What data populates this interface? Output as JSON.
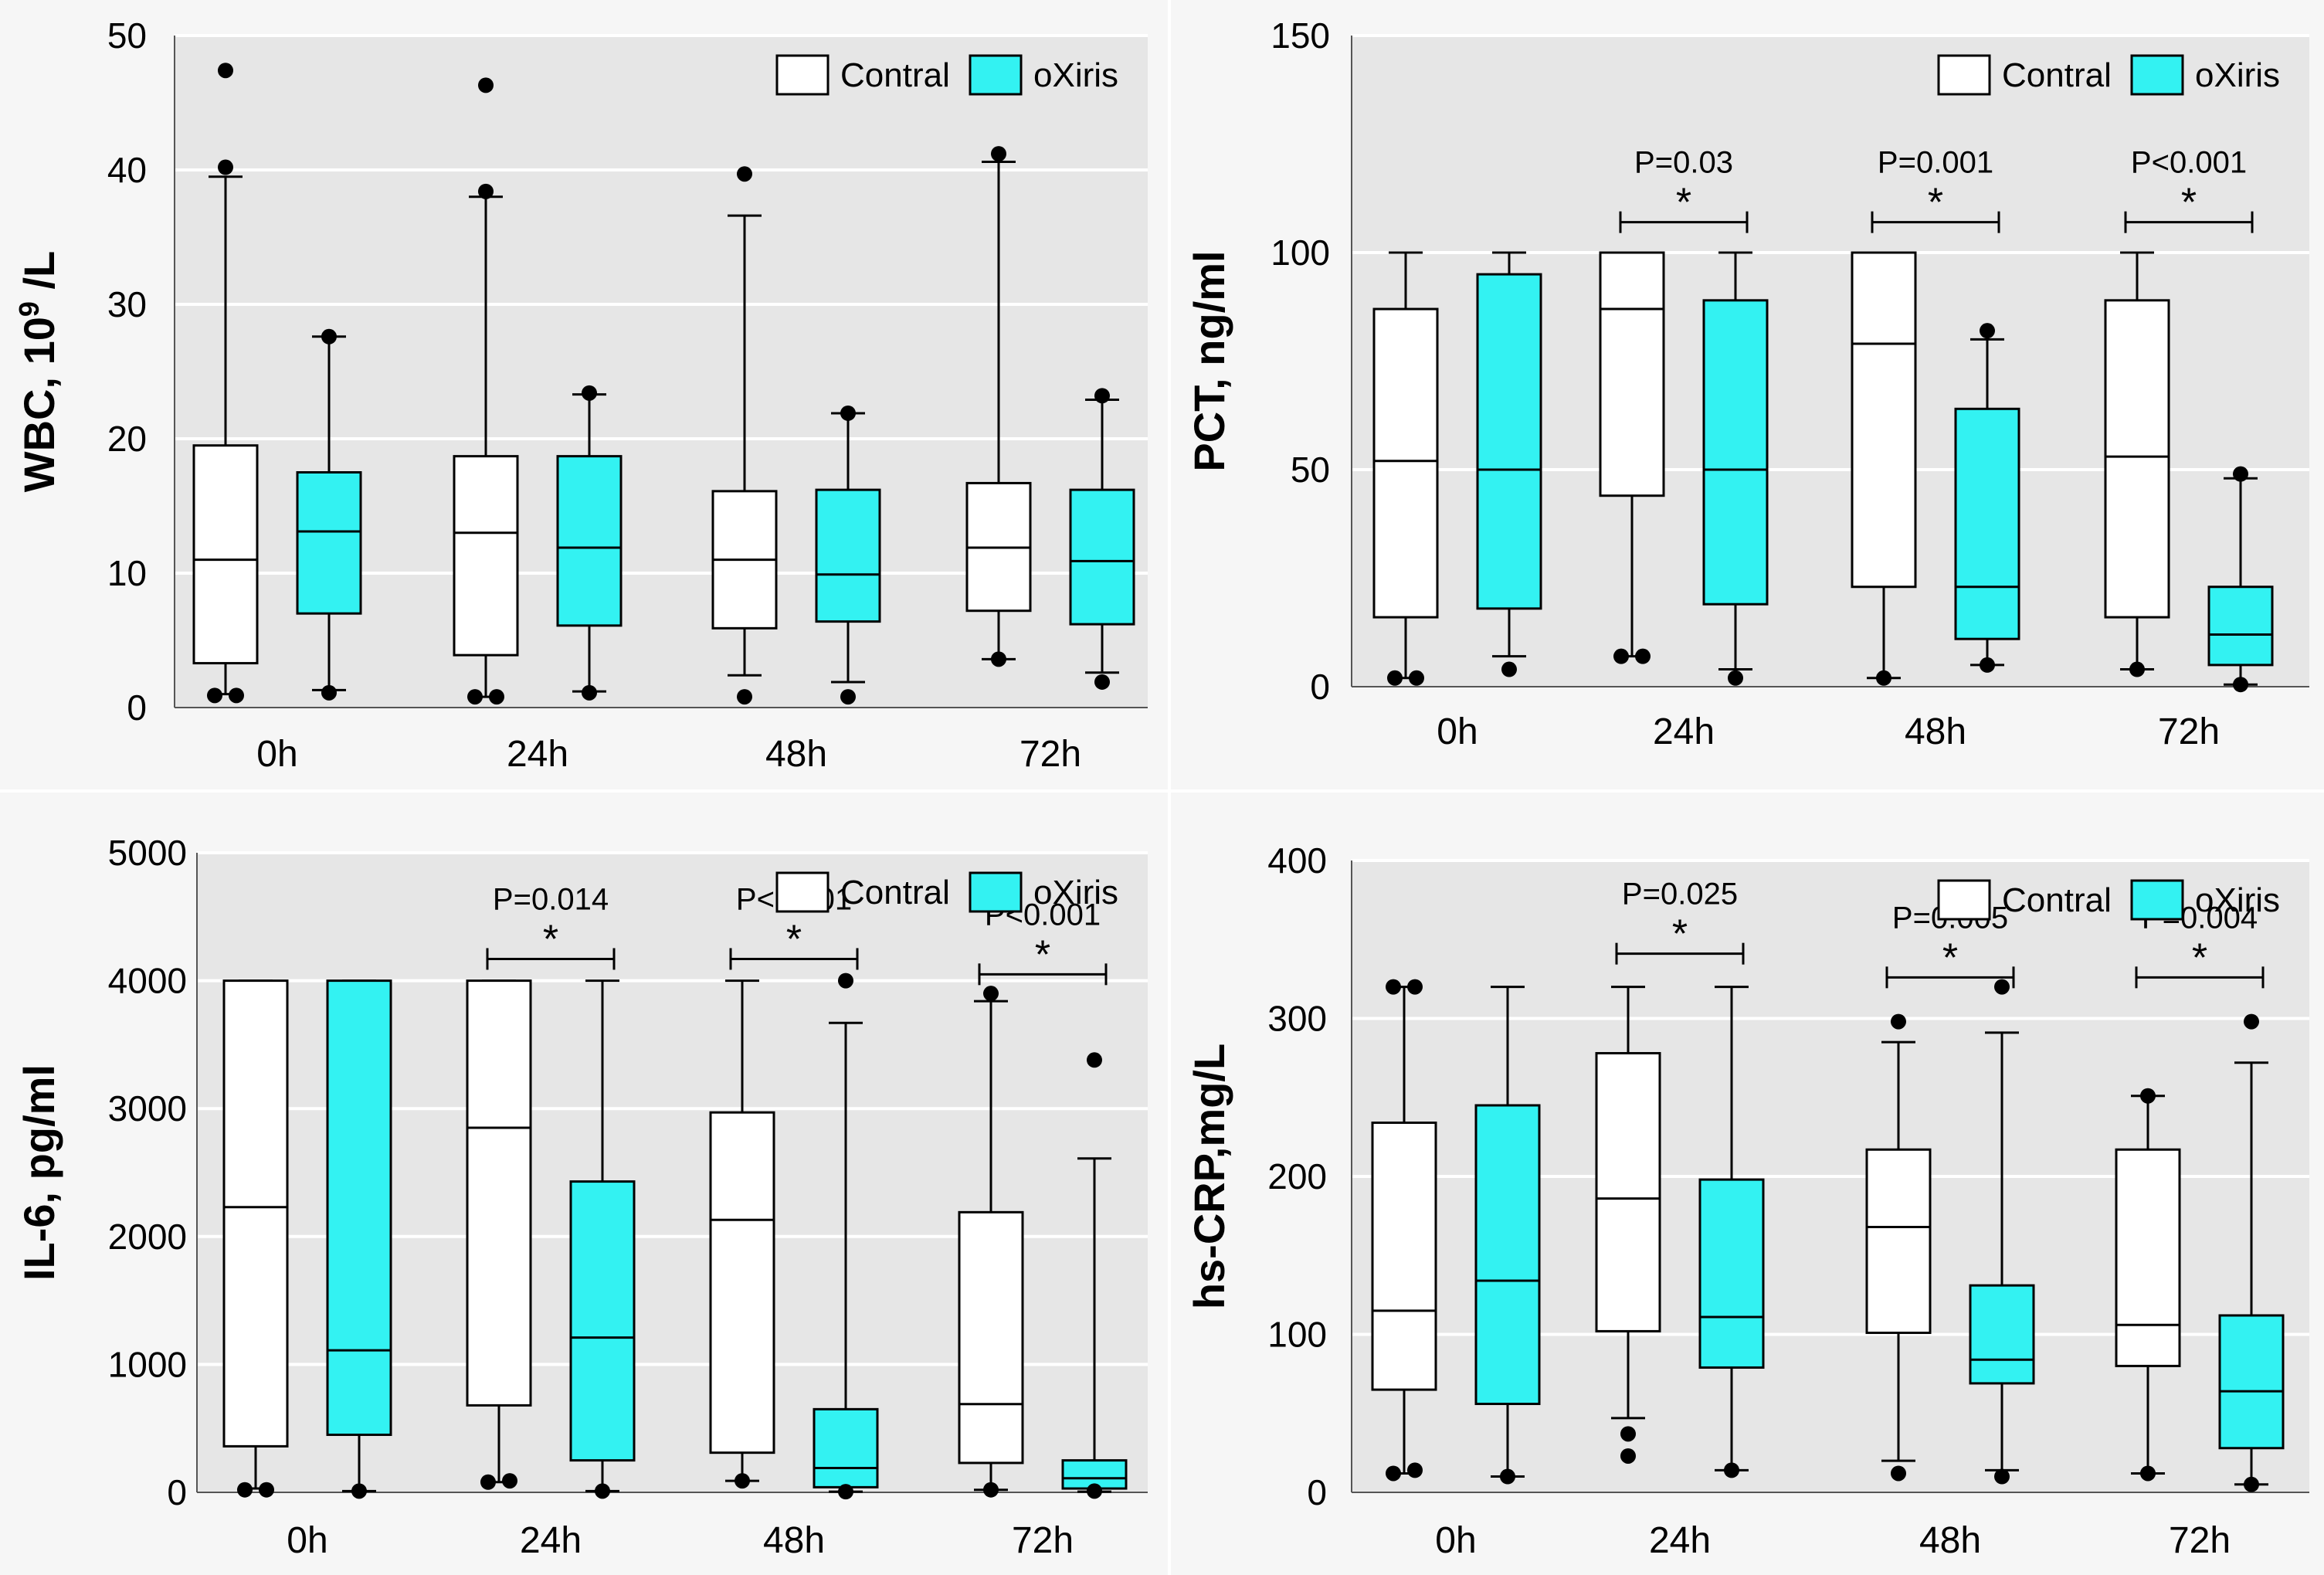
{
  "colors": {
    "control_fill": "#ffffff",
    "oxiris_fill": "#33f2f2",
    "plot_bg": "#e6e6e6",
    "stroke": "#000000"
  },
  "chart_data": [
    {
      "type": "box",
      "ylabel_main": "WBC, 10",
      "ylabel_sup": "9",
      "ylabel_tail": " /L",
      "ylim": [
        0,
        50
      ],
      "yticks": [
        0,
        10,
        20,
        30,
        40,
        50
      ],
      "categories": [
        "0h",
        "24h",
        "48h",
        "72h"
      ],
      "legend": [
        "Contral",
        "oXiris"
      ],
      "legend_position": "top-right",
      "grid": true,
      "series": [
        {
          "name": "Contral",
          "boxes": [
            {
              "q1": 3.3,
              "median": 11.0,
              "q3": 19.5,
              "wlow": 1.0,
              "whigh": 39.5,
              "outliers": [
                47.4,
                40.2,
                0.9,
                0.9
              ]
            },
            {
              "q1": 3.9,
              "median": 13.0,
              "q3": 18.7,
              "wlow": 0.8,
              "whigh": 38.0,
              "outliers": [
                46.3,
                38.4,
                0.8,
                0.8
              ]
            },
            {
              "q1": 5.9,
              "median": 11.0,
              "q3": 16.1,
              "wlow": 2.4,
              "whigh": 36.6,
              "outliers": [
                39.7,
                0.8
              ]
            },
            {
              "q1": 7.2,
              "median": 11.9,
              "q3": 16.7,
              "wlow": 3.6,
              "whigh": 40.6,
              "outliers": [
                41.2,
                3.6
              ]
            }
          ]
        },
        {
          "name": "oXiris",
          "boxes": [
            {
              "q1": 7.0,
              "median": 13.1,
              "q3": 17.5,
              "wlow": 1.3,
              "whigh": 27.6,
              "outliers": [
                27.6,
                1.1
              ]
            },
            {
              "q1": 6.1,
              "median": 11.9,
              "q3": 18.7,
              "wlow": 1.2,
              "whigh": 23.3,
              "outliers": [
                23.4,
                1.1
              ]
            },
            {
              "q1": 6.4,
              "median": 9.9,
              "q3": 16.2,
              "wlow": 1.9,
              "whigh": 21.9,
              "outliers": [
                21.9,
                0.8
              ]
            },
            {
              "q1": 6.2,
              "median": 10.9,
              "q3": 16.2,
              "wlow": 2.6,
              "whigh": 22.9,
              "outliers": [
                23.2,
                1.9
              ]
            }
          ]
        }
      ],
      "annotations": []
    },
    {
      "type": "box",
      "ylabel_main": "PCT, ng/ml",
      "ylabel_sup": "",
      "ylabel_tail": "",
      "ylim": [
        0,
        150
      ],
      "yticks": [
        0,
        50,
        100,
        150
      ],
      "categories": [
        "0h",
        "24h",
        "48h",
        "72h"
      ],
      "legend": [
        "Contral",
        "oXiris"
      ],
      "legend_position": "top-right",
      "grid": true,
      "series": [
        {
          "name": "Contral",
          "boxes": [
            {
              "q1": 16,
              "median": 52,
              "q3": 87,
              "wlow": 2,
              "whigh": 100,
              "outliers": [
                2,
                2
              ]
            },
            {
              "q1": 44,
              "median": 87,
              "q3": 100,
              "wlow": 7,
              "whigh": 100,
              "outliers": [
                7,
                7
              ]
            },
            {
              "q1": 23,
              "median": 79,
              "q3": 100,
              "wlow": 2,
              "whigh": 100,
              "outliers": [
                2
              ]
            },
            {
              "q1": 16,
              "median": 53,
              "q3": 89,
              "wlow": 4,
              "whigh": 100,
              "outliers": [
                4
              ]
            }
          ]
        },
        {
          "name": "oXiris",
          "boxes": [
            {
              "q1": 18,
              "median": 50,
              "q3": 95,
              "wlow": 7,
              "whigh": 100,
              "outliers": [
                4
              ]
            },
            {
              "q1": 19,
              "median": 50,
              "q3": 89,
              "wlow": 4,
              "whigh": 100,
              "outliers": [
                2
              ]
            },
            {
              "q1": 11,
              "median": 23,
              "q3": 64,
              "wlow": 5,
              "whigh": 80,
              "outliers": [
                82,
                5
              ]
            },
            {
              "q1": 5,
              "median": 12,
              "q3": 23,
              "wlow": 0.5,
              "whigh": 48,
              "outliers": [
                49,
                0.5
              ]
            }
          ]
        }
      ],
      "annotations": [
        {
          "category": 1,
          "pvalue": "P=0.03",
          "star": "*",
          "bracket_y": 107
        },
        {
          "category": 2,
          "pvalue": "P=0.001",
          "star": "*",
          "bracket_y": 107
        },
        {
          "category": 3,
          "pvalue": "P<0.001",
          "star": "*",
          "bracket_y": 107
        }
      ]
    },
    {
      "type": "box",
      "ylabel_main": "IL-6, pg/ml",
      "ylabel_sup": "",
      "ylabel_tail": "",
      "ylim": [
        0,
        5000
      ],
      "yticks": [
        0,
        1000,
        2000,
        3000,
        4000,
        5000
      ],
      "categories": [
        "0h",
        "24h",
        "48h",
        "72h"
      ],
      "legend": [
        "Contral",
        "oXiris"
      ],
      "legend_position": "top-right",
      "grid": true,
      "series": [
        {
          "name": "Contral",
          "boxes": [
            {
              "q1": 360,
              "median": 2230,
              "q3": 4000,
              "wlow": 30,
              "whigh": 4000,
              "outliers": [
                20,
                20
              ]
            },
            {
              "q1": 680,
              "median": 2850,
              "q3": 4000,
              "wlow": 80,
              "whigh": 4000,
              "outliers": [
                80,
                90
              ]
            },
            {
              "q1": 310,
              "median": 2130,
              "q3": 2970,
              "wlow": 90,
              "whigh": 4000,
              "outliers": [
                90
              ]
            },
            {
              "q1": 230,
              "median": 690,
              "q3": 2190,
              "wlow": 20,
              "whigh": 3840,
              "outliers": [
                3900,
                20
              ]
            }
          ]
        },
        {
          "name": "oXiris",
          "boxes": [
            {
              "q1": 450,
              "median": 1110,
              "q3": 4000,
              "wlow": 10,
              "whigh": 4000,
              "outliers": [
                10
              ]
            },
            {
              "q1": 250,
              "median": 1210,
              "q3": 2430,
              "wlow": 10,
              "whigh": 4000,
              "outliers": [
                10
              ]
            },
            {
              "q1": 40,
              "median": 190,
              "q3": 650,
              "wlow": 5,
              "whigh": 3670,
              "outliers": [
                4000,
                5
              ]
            },
            {
              "q1": 30,
              "median": 110,
              "q3": 250,
              "wlow": 5,
              "whigh": 2610,
              "outliers": [
                3380,
                10
              ]
            }
          ]
        }
      ],
      "annotations": [
        {
          "category": 1,
          "pvalue": "P=0.014",
          "star": "*",
          "bracket_y": 4170
        },
        {
          "category": 2,
          "pvalue": "P<0.001",
          "star": "*",
          "bracket_y": 4170
        },
        {
          "category": 3,
          "pvalue": "P<0.001",
          "star": "*",
          "bracket_y": 4050
        }
      ]
    },
    {
      "type": "box",
      "ylabel_main": "hs-CRP,mg/L",
      "ylabel_sup": "",
      "ylabel_tail": "",
      "ylim": [
        0,
        400
      ],
      "yticks": [
        0,
        100,
        200,
        300,
        400
      ],
      "categories": [
        "0h",
        "24h",
        "48h",
        "72h"
      ],
      "legend": [
        "Contral",
        "oXiris"
      ],
      "legend_position": "top-right",
      "grid": true,
      "series": [
        {
          "name": "Contral",
          "boxes": [
            {
              "q1": 65,
              "median": 115,
              "q3": 234,
              "wlow": 12,
              "whigh": 320,
              "outliers": [
                320,
                320,
                12,
                14
              ]
            },
            {
              "q1": 102,
              "median": 186,
              "q3": 278,
              "wlow": 47,
              "whigh": 320,
              "outliers": [
                37,
                23
              ]
            },
            {
              "q1": 101,
              "median": 168,
              "q3": 217,
              "wlow": 20,
              "whigh": 285,
              "outliers": [
                298,
                12
              ]
            },
            {
              "q1": 80,
              "median": 106,
              "q3": 217,
              "wlow": 12,
              "whigh": 251,
              "outliers": [
                251,
                12
              ]
            }
          ]
        },
        {
          "name": "oXiris",
          "boxes": [
            {
              "q1": 56,
              "median": 134,
              "q3": 245,
              "wlow": 10,
              "whigh": 320,
              "outliers": [
                10
              ]
            },
            {
              "q1": 79,
              "median": 111,
              "q3": 198,
              "wlow": 14,
              "whigh": 320,
              "outliers": [
                14
              ]
            },
            {
              "q1": 69,
              "median": 84,
              "q3": 131,
              "wlow": 14,
              "whigh": 291,
              "outliers": [
                320,
                10
              ]
            },
            {
              "q1": 28,
              "median": 64,
              "q3": 112,
              "wlow": 5,
              "whigh": 272,
              "outliers": [
                298,
                5
              ]
            }
          ]
        }
      ],
      "annotations": [
        {
          "category": 1,
          "pvalue": "P=0.025",
          "star": "*",
          "bracket_y": 341
        },
        {
          "category": 2,
          "pvalue": "P=0.005",
          "star": "*",
          "bracket_y": 326
        },
        {
          "category": 3,
          "pvalue": "P=0.004",
          "star": "*",
          "bracket_y": 326
        }
      ]
    }
  ]
}
